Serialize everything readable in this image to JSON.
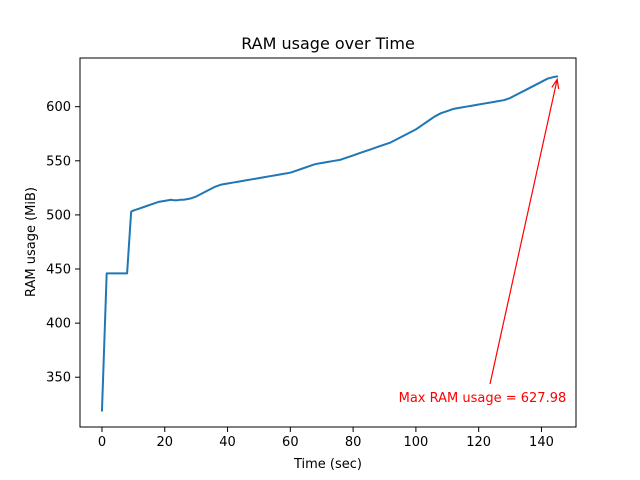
{
  "chart_data": {
    "type": "line",
    "title": "RAM usage over Time",
    "xlabel": "Time (sec)",
    "ylabel": "RAM usage (MiB)",
    "xlim": [
      -7,
      151
    ],
    "ylim": [
      304,
      645
    ],
    "xticks": [
      0,
      20,
      40,
      60,
      80,
      100,
      120,
      140
    ],
    "yticks": [
      350,
      400,
      450,
      500,
      550,
      600
    ],
    "grid": false,
    "series": [
      {
        "color": "#1f77b4",
        "points": [
          [
            0,
            319
          ],
          [
            1.5,
            446
          ],
          [
            3,
            446
          ],
          [
            5,
            446
          ],
          [
            6,
            446
          ],
          [
            8,
            446
          ],
          [
            9.3,
            503
          ],
          [
            10,
            504
          ],
          [
            12,
            506
          ],
          [
            14,
            508
          ],
          [
            16,
            510
          ],
          [
            18,
            512
          ],
          [
            20,
            513
          ],
          [
            22,
            514
          ],
          [
            23,
            513.5
          ],
          [
            24,
            513.5
          ],
          [
            25,
            514
          ],
          [
            26,
            514
          ],
          [
            28,
            515
          ],
          [
            30,
            517
          ],
          [
            32,
            520
          ],
          [
            34,
            523
          ],
          [
            36,
            526
          ],
          [
            38,
            528
          ],
          [
            40,
            529
          ],
          [
            42,
            530
          ],
          [
            44,
            531
          ],
          [
            46,
            532
          ],
          [
            48,
            533
          ],
          [
            50,
            534
          ],
          [
            52,
            535
          ],
          [
            54,
            536
          ],
          [
            56,
            537
          ],
          [
            58,
            538
          ],
          [
            60,
            539
          ],
          [
            62,
            541
          ],
          [
            64,
            543
          ],
          [
            66,
            545
          ],
          [
            68,
            547
          ],
          [
            70,
            548
          ],
          [
            72,
            549
          ],
          [
            74,
            550
          ],
          [
            76,
            551
          ],
          [
            78,
            553
          ],
          [
            80,
            555
          ],
          [
            82,
            557
          ],
          [
            84,
            559
          ],
          [
            86,
            561
          ],
          [
            88,
            563
          ],
          [
            90,
            565
          ],
          [
            92,
            567
          ],
          [
            94,
            570
          ],
          [
            96,
            573
          ],
          [
            98,
            576
          ],
          [
            100,
            579
          ],
          [
            102,
            583
          ],
          [
            104,
            587
          ],
          [
            106,
            591
          ],
          [
            108,
            594
          ],
          [
            110,
            596
          ],
          [
            112,
            598
          ],
          [
            114,
            599
          ],
          [
            116,
            600
          ],
          [
            118,
            601
          ],
          [
            120,
            602
          ],
          [
            122,
            603
          ],
          [
            124,
            604
          ],
          [
            126,
            605
          ],
          [
            128,
            606
          ],
          [
            130,
            608
          ],
          [
            132,
            611
          ],
          [
            134,
            614
          ],
          [
            136,
            617
          ],
          [
            138,
            620
          ],
          [
            140,
            623
          ],
          [
            142,
            626
          ],
          [
            144,
            627.5
          ],
          [
            145,
            627.98
          ]
        ]
      }
    ],
    "annotation": {
      "text": "Max RAM usage = 627.98",
      "color": "#ff0000",
      "xy": [
        145,
        627.98
      ],
      "xytext": [
        94.5,
        327
      ]
    }
  }
}
